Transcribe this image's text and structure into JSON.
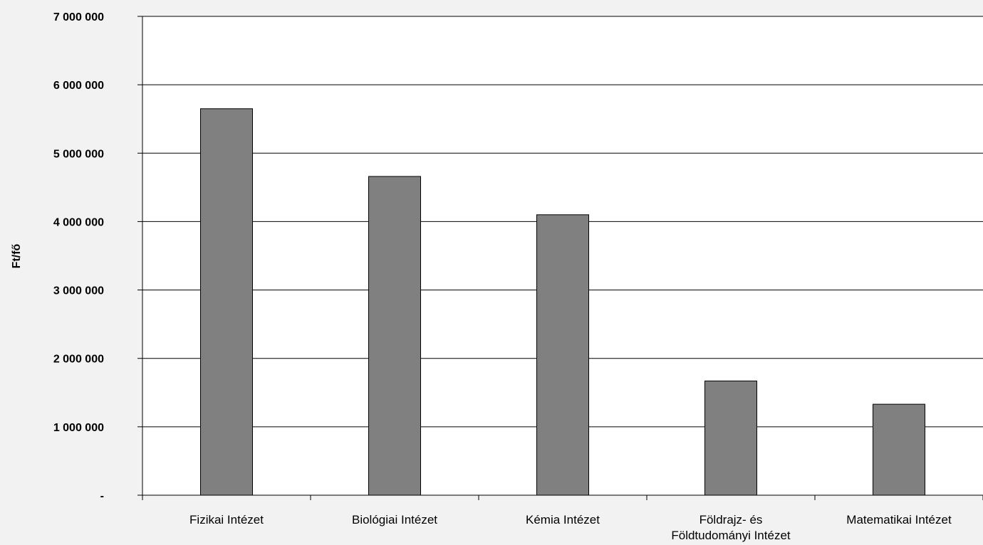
{
  "chart_data": {
    "type": "bar",
    "title": "",
    "xlabel": "",
    "ylabel": "Ft/fő",
    "ylim": [
      0,
      7000000
    ],
    "grid": true,
    "legend": "none",
    "bar_color": "#808080",
    "categories": [
      "Fizikai Intézet",
      "Biológiai Intézet",
      "Kémia Intézet",
      "Földrajz- és Földtudományi Intézet",
      "Matematikai Intézet"
    ],
    "category_lines": [
      [
        "Fizikai Intézet"
      ],
      [
        "Biológiai Intézet"
      ],
      [
        "Kémia Intézet"
      ],
      [
        "Földrajz- és",
        "Földtudományi Intézet"
      ],
      [
        "Matematikai Intézet"
      ]
    ],
    "values": [
      5650000,
      4660000,
      4100000,
      1670000,
      1330000
    ],
    "yticks": [
      {
        "value": 0,
        "label": "-"
      },
      {
        "value": 1000000,
        "label": "1 000 000"
      },
      {
        "value": 2000000,
        "label": "2 000 000"
      },
      {
        "value": 3000000,
        "label": "3 000 000"
      },
      {
        "value": 4000000,
        "label": "4 000 000"
      },
      {
        "value": 5000000,
        "label": "5 000 000"
      },
      {
        "value": 6000000,
        "label": "6 000 000"
      },
      {
        "value": 7000000,
        "label": "7 000 000"
      }
    ]
  }
}
